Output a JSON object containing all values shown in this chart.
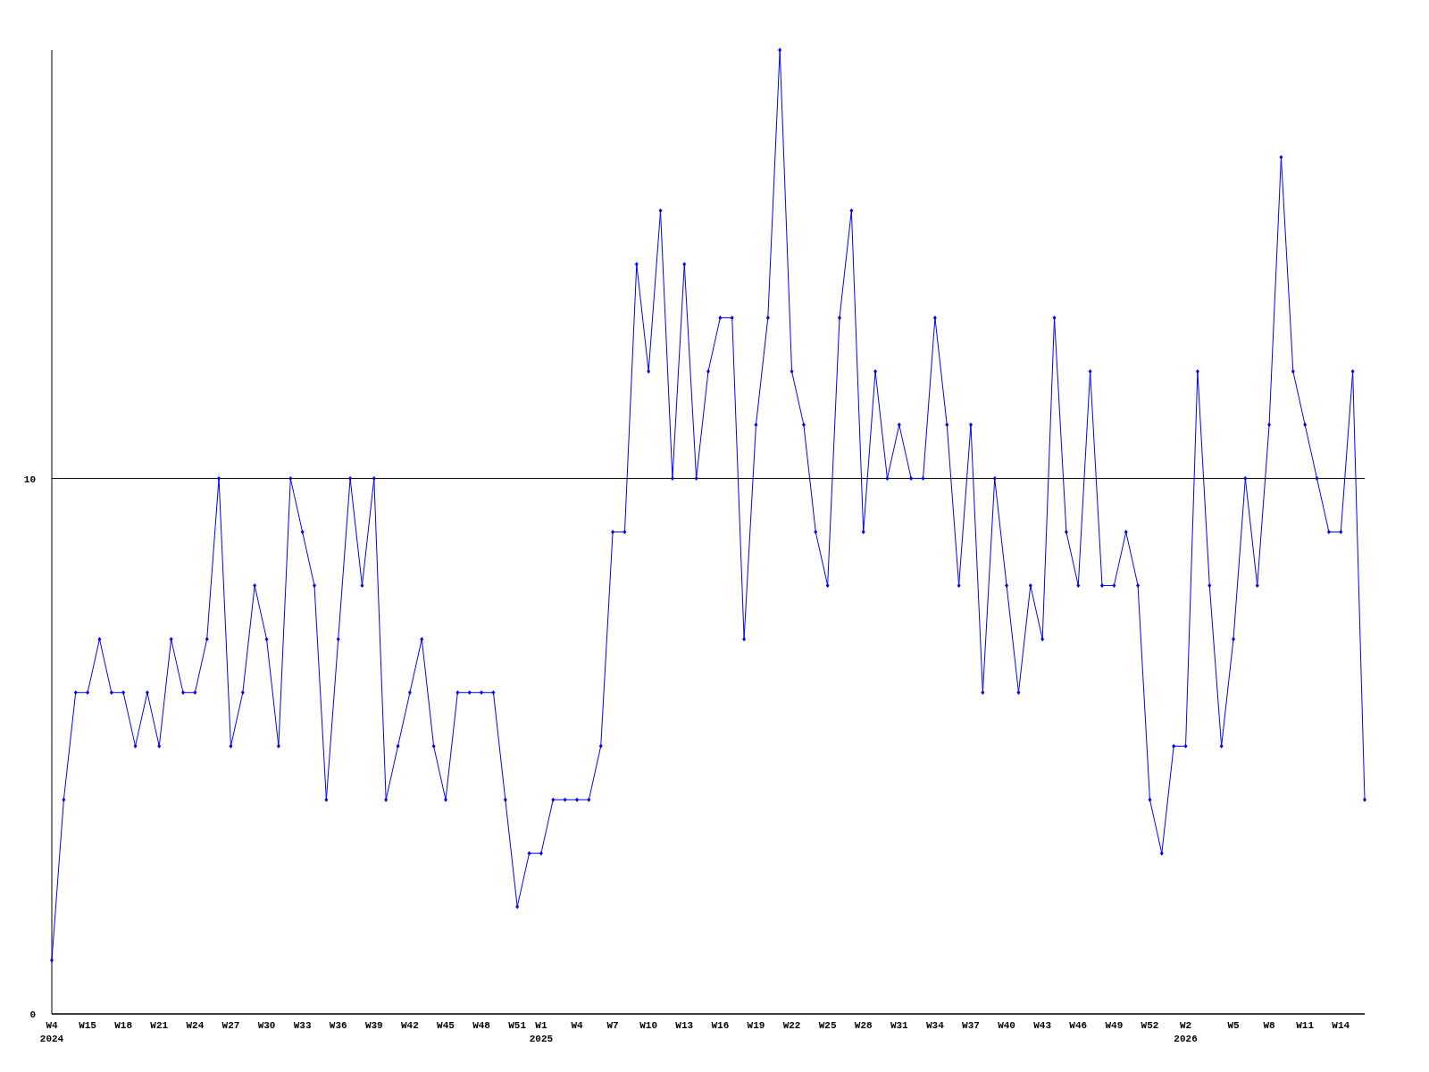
{
  "chart_data": {
    "type": "line",
    "categories": [
      "W4\n2024",
      null,
      null,
      "W15",
      null,
      null,
      "W18",
      null,
      null,
      "W21",
      null,
      null,
      "W24",
      null,
      null,
      "W27",
      null,
      null,
      "W30",
      null,
      null,
      "W33",
      null,
      null,
      "W36",
      null,
      null,
      "W39",
      null,
      null,
      "W42",
      null,
      null,
      "W45",
      null,
      null,
      "W48",
      null,
      null,
      "W51",
      null,
      "W1\n2025",
      null,
      null,
      "W4",
      null,
      null,
      "W7",
      null,
      null,
      "W10",
      null,
      null,
      "W13",
      null,
      null,
      "W16",
      null,
      null,
      "W19",
      null,
      null,
      "W22",
      null,
      null,
      "W25",
      null,
      null,
      "W28",
      null,
      null,
      "W31",
      null,
      null,
      "W34",
      null,
      null,
      "W37",
      null,
      null,
      "W40",
      null,
      null,
      "W43",
      null,
      null,
      "W46",
      null,
      null,
      "W49",
      null,
      null,
      "W52",
      null,
      null,
      "W2\n2026",
      null,
      null,
      null,
      "W5",
      null,
      null,
      "W8",
      null,
      null,
      "W11",
      null,
      null,
      "W14",
      null,
      null
    ],
    "series": [
      {
        "color": "#0000ff",
        "values": [
          1,
          4,
          6,
          6,
          7,
          6,
          6,
          5,
          6,
          5,
          7,
          6,
          6,
          7,
          10,
          5,
          6,
          8,
          7,
          5,
          10,
          9,
          8,
          4,
          7,
          10,
          8,
          10,
          4,
          5,
          6,
          7,
          5,
          4,
          6,
          6,
          6,
          6,
          4,
          2,
          3,
          3,
          4,
          4,
          4,
          4,
          5,
          9,
          9,
          14,
          12,
          15,
          10,
          14,
          10,
          12,
          13,
          13,
          7,
          11,
          13,
          18,
          12,
          11,
          9,
          8,
          13,
          15,
          9,
          12,
          10,
          11,
          10,
          10,
          13,
          11,
          8,
          11,
          6,
          10,
          8,
          6,
          8,
          7,
          13,
          9,
          8,
          12,
          8,
          8,
          9,
          8,
          4,
          3,
          5,
          5,
          12,
          8,
          5,
          7,
          10,
          8,
          11,
          16,
          12,
          11,
          10,
          9,
          9,
          12,
          4
        ]
      }
    ],
    "ylim": [
      0,
      18
    ],
    "yticks": [
      0,
      10
    ],
    "grid": "y",
    "marker": "diamond",
    "line_style": "solid"
  }
}
